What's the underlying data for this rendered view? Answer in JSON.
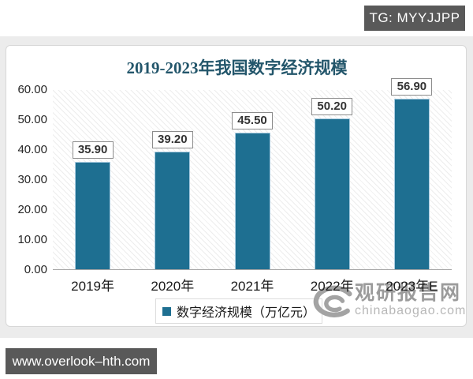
{
  "page": {
    "top_badge": "TG: MYYJJPP",
    "bottom_badge": "www.overlook–hth.com"
  },
  "chart_data": {
    "type": "bar",
    "title": "2019-2023年我国数字经济规模",
    "categories": [
      "2019年",
      "2020年",
      "2021年",
      "2022年",
      "2023年E"
    ],
    "values": [
      35.9,
      39.2,
      45.5,
      50.2,
      56.9
    ],
    "value_labels": [
      "35.90",
      "39.20",
      "45.50",
      "50.20",
      "56.90"
    ],
    "ylim": [
      0,
      60
    ],
    "ytick_labels": [
      "0.00",
      "10.00",
      "20.00",
      "30.00",
      "40.00",
      "50.00",
      "60.00"
    ],
    "xlabel": "",
    "ylabel": "",
    "grid": false,
    "legend_position": "bottom-center",
    "legend": "数字经济规模（万亿元）",
    "bar_color": "#1e6f91",
    "bar_edge_color": "#a9cbe0",
    "title_color": "#23566b"
  },
  "watermark": {
    "name": "观研报告网",
    "domain": "chinabaogao.com"
  }
}
